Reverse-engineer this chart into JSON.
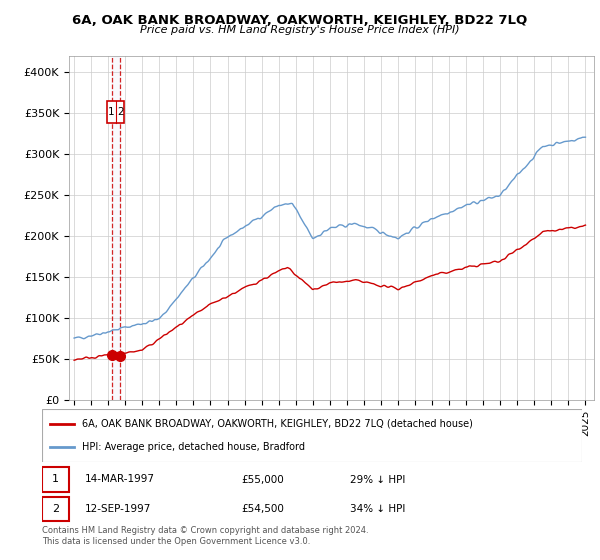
{
  "title": "6A, OAK BANK BROADWAY, OAKWORTH, KEIGHLEY, BD22 7LQ",
  "subtitle": "Price paid vs. HM Land Registry's House Price Index (HPI)",
  "ylabel_ticks": [
    "£0",
    "£50K",
    "£100K",
    "£150K",
    "£200K",
    "£250K",
    "£300K",
    "£350K",
    "£400K"
  ],
  "ytick_values": [
    0,
    50000,
    100000,
    150000,
    200000,
    250000,
    300000,
    350000,
    400000
  ],
  "ylim": [
    0,
    420000
  ],
  "xlim_start": 1994.7,
  "xlim_end": 2025.5,
  "legend_line1": "6A, OAK BANK BROADWAY, OAKWORTH, KEIGHLEY, BD22 7LQ (detached house)",
  "legend_line2": "HPI: Average price, detached house, Bradford",
  "sale1_date": "14-MAR-1997",
  "sale1_price": "£55,000",
  "sale1_hpi": "29% ↓ HPI",
  "sale2_date": "12-SEP-1997",
  "sale2_price": "£54,500",
  "sale2_hpi": "34% ↓ HPI",
  "copyright": "Contains HM Land Registry data © Crown copyright and database right 2024.\nThis data is licensed under the Open Government Licence v3.0.",
  "sale1_x": 1997.2,
  "sale2_x": 1997.7,
  "sale1_y": 55000,
  "sale2_y": 54500,
  "line_color_red": "#cc0000",
  "line_color_blue": "#6699cc",
  "dot_color_red": "#cc0000",
  "vline_color1": "#cc0000",
  "vline_color2": "#cc0000",
  "box_border": "#cc0000"
}
